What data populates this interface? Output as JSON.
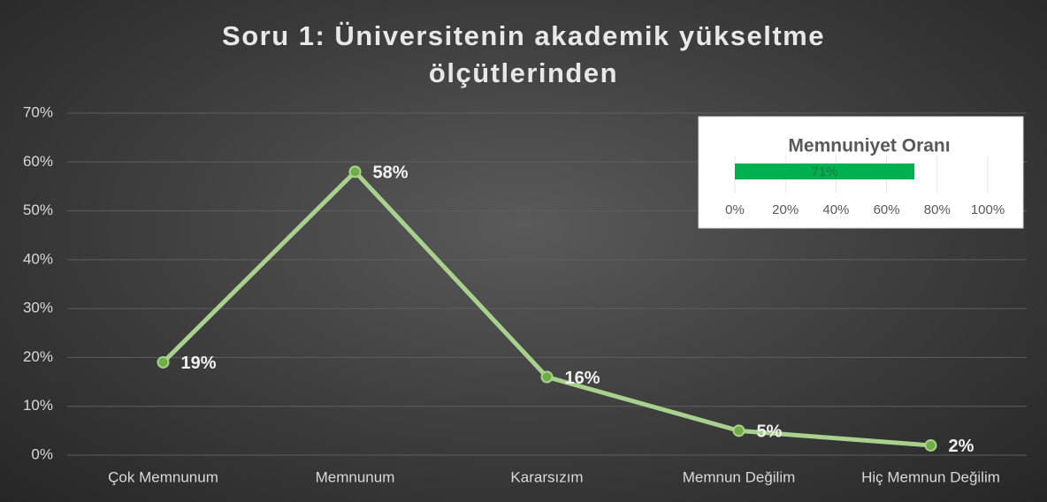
{
  "chart_data": [
    {
      "type": "line",
      "title": "Soru 1: Üniversitenin akademik yükseltme ölçütlerinden",
      "categories": [
        "Çok Memnunum",
        "Memnunum",
        "Kararsızım",
        "Memnun Değilim",
        "Hiç Memnun Değilim"
      ],
      "values": [
        19,
        58,
        16,
        5,
        2
      ],
      "value_labels": [
        "19%",
        "58%",
        "16%",
        "5%",
        "2%"
      ],
      "color": "#a9d18e",
      "ylim": [
        0,
        70
      ],
      "yticks": [
        {
          "value": 0,
          "label": "0%"
        },
        {
          "value": 10,
          "label": "10%"
        },
        {
          "value": 20,
          "label": "20%"
        },
        {
          "value": 30,
          "label": "30%"
        },
        {
          "value": 40,
          "label": "40%"
        },
        {
          "value": 50,
          "label": "50%"
        },
        {
          "value": 60,
          "label": "60%"
        },
        {
          "value": 70,
          "label": "70%"
        }
      ],
      "grid": true
    },
    {
      "type": "hbar",
      "title": "Memnuniyet Oranı",
      "values": [
        71
      ],
      "value_labels": [
        "71%"
      ],
      "color": "#00b050",
      "xlim": [
        0,
        100
      ],
      "xticks": [
        {
          "value": 0,
          "label": "0%"
        },
        {
          "value": 20,
          "label": "20%"
        },
        {
          "value": 40,
          "label": "40%"
        },
        {
          "value": 60,
          "label": "60%"
        },
        {
          "value": 80,
          "label": "80%"
        },
        {
          "value": 100,
          "label": "100%"
        }
      ],
      "grid": true
    }
  ]
}
